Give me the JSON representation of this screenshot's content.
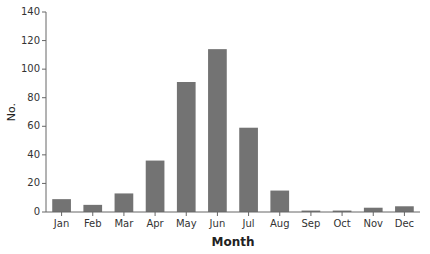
{
  "chart_data": {
    "type": "bar",
    "categories": [
      "Jan",
      "Feb",
      "Mar",
      "Apr",
      "May",
      "Jun",
      "Jul",
      "Aug",
      "Sep",
      "Oct",
      "Nov",
      "Dec"
    ],
    "values": [
      9,
      5,
      13,
      36,
      91,
      114,
      59,
      15,
      1,
      1,
      3,
      4
    ],
    "color": "#737373",
    "xlabel": "Month",
    "ylabel": "No.",
    "ylim": [
      0,
      140
    ],
    "yticks": [
      0,
      20,
      40,
      60,
      80,
      100,
      120,
      140
    ],
    "grid": false
  }
}
